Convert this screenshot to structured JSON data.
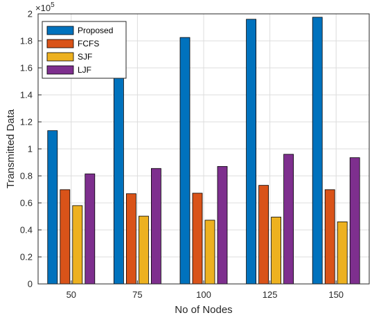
{
  "chart_data": {
    "type": "bar",
    "categories": [
      "50",
      "75",
      "100",
      "125",
      "150"
    ],
    "series": [
      {
        "name": "Proposed",
        "color": "#0072BD",
        "values": [
          113500,
          155500,
          182500,
          196000,
          197500
        ]
      },
      {
        "name": "FCFS",
        "color": "#D95319",
        "values": [
          69800,
          66800,
          67200,
          73000,
          69800
        ]
      },
      {
        "name": "SJF",
        "color": "#EDB120",
        "values": [
          58000,
          50200,
          47200,
          49500,
          46000
        ]
      },
      {
        "name": "LJF",
        "color": "#7E2F8E",
        "values": [
          81500,
          85500,
          87000,
          96000,
          93500
        ]
      }
    ],
    "xlabel": "No of Nodes",
    "ylabel": "Transmitted Data",
    "ylim": [
      0,
      200000
    ],
    "y_ticks": [
      0,
      20000,
      40000,
      60000,
      80000,
      100000,
      120000,
      140000,
      160000,
      180000,
      200000
    ],
    "y_tick_labels": [
      "0",
      "0.2",
      "0.4",
      "0.6",
      "0.8",
      "1",
      "1.2",
      "1.4",
      "1.6",
      "1.8",
      "2"
    ],
    "y_exponent_base": "×10",
    "y_exponent_power": "5",
    "grid": true,
    "legend_position": "top-left"
  }
}
